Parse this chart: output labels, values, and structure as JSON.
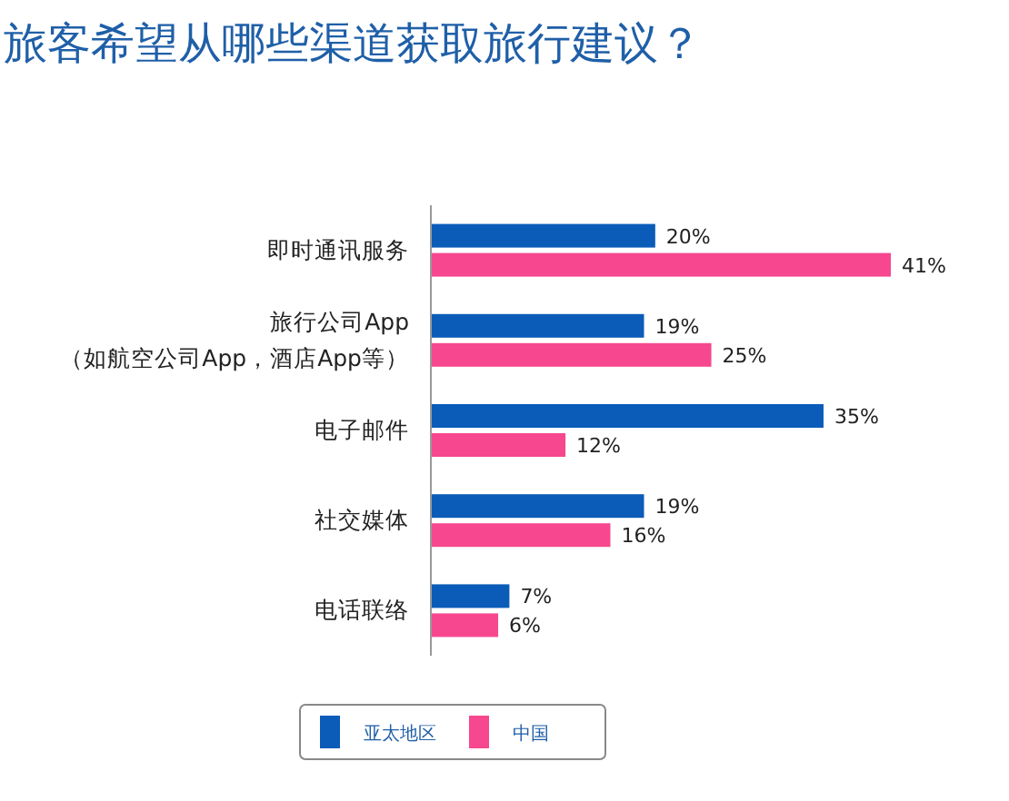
{
  "chart_data": {
    "type": "bar",
    "orientation": "horizontal",
    "title": "旅客希望从哪些渠道获取旅行建议？",
    "categories": [
      "即时通讯服务",
      "旅行公司App\n（如航空公司App，酒店App等）",
      "电子邮件",
      "社交媒体",
      "电话联络"
    ],
    "series": [
      {
        "name": "亚太地区",
        "color": "#0a5cb8",
        "values": [
          20,
          19,
          35,
          19,
          7
        ],
        "value_labels": [
          "20%",
          "19%",
          "35%",
          "19%",
          "7%"
        ]
      },
      {
        "name": "中国",
        "color": "#f7478f",
        "values": [
          41,
          25,
          12,
          16,
          6
        ],
        "value_labels": [
          "41%",
          "25%",
          "12%",
          "16%",
          "6%"
        ]
      }
    ],
    "legend": "bottom"
  }
}
